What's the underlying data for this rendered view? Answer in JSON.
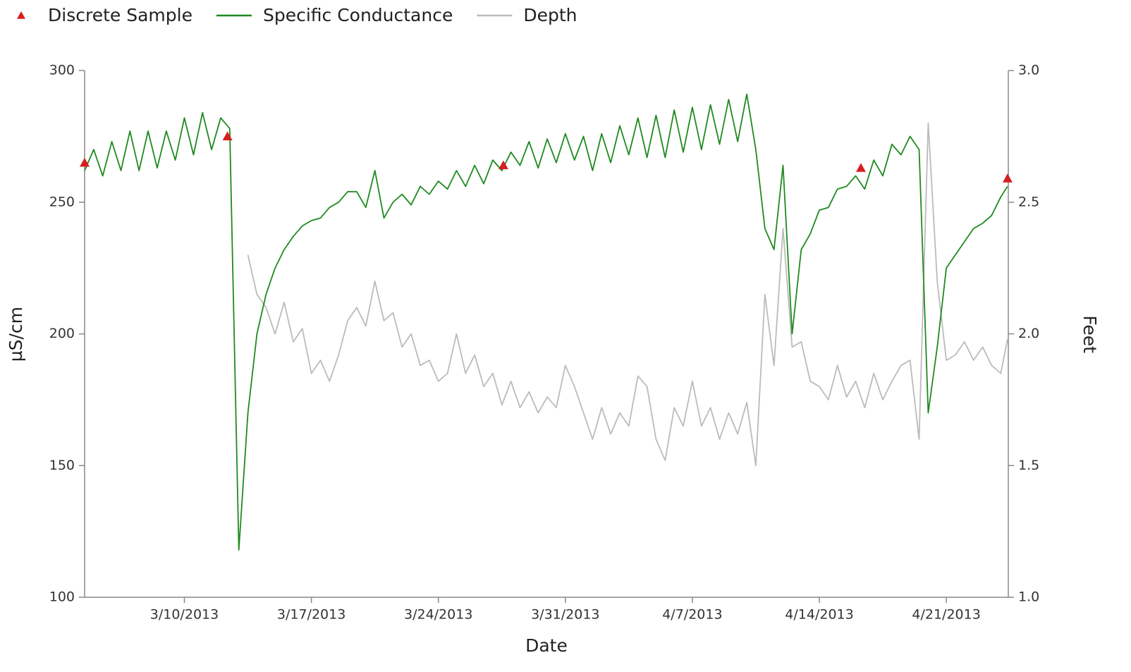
{
  "chart_data": {
    "type": "line",
    "xlabel": "Date",
    "ylabel": "µS/cm",
    "y2label": "Feet",
    "xlim": [
      "2013-03-04T12:00",
      "2013-04-24T10:00"
    ],
    "xticks": [
      {
        "value": "2013-03-10T00:00",
        "label": "3/10/2013"
      },
      {
        "value": "2013-03-17T00:00",
        "label": "3/17/2013"
      },
      {
        "value": "2013-03-24T00:00",
        "label": "3/24/2013"
      },
      {
        "value": "2013-03-31T00:00",
        "label": "3/31/2013"
      },
      {
        "value": "2013-04-07T00:00",
        "label": "4/7/2013"
      },
      {
        "value": "2013-04-14T00:00",
        "label": "4/14/2013"
      },
      {
        "value": "2013-04-21T00:00",
        "label": "4/21/2013"
      }
    ],
    "ylim": [
      100,
      300
    ],
    "yticks": [
      100,
      150,
      200,
      250,
      300
    ],
    "y2lim": [
      1,
      3
    ],
    "y2ticks": [
      {
        "value": 1,
        "label": "1.0"
      },
      1.5,
      {
        "value": 2,
        "label": "2.0"
      },
      2.5,
      {
        "value": 3,
        "label": "3.0"
      }
    ],
    "legend": "top-left",
    "x": [
      "2013-03-04T12:00",
      "2013-03-05T00:00",
      "2013-03-05T12:00",
      "2013-03-06T00:00",
      "2013-03-06T12:00",
      "2013-03-07T00:00",
      "2013-03-07T12:00",
      "2013-03-08T00:00",
      "2013-03-08T12:00",
      "2013-03-09T00:00",
      "2013-03-09T12:00",
      "2013-03-10T00:00",
      "2013-03-10T12:00",
      "2013-03-11T00:00",
      "2013-03-11T12:00",
      "2013-03-12T00:00",
      "2013-03-12T12:00",
      "2013-03-13T00:00",
      "2013-03-13T12:00",
      "2013-03-14T00:00",
      "2013-03-14T12:00",
      "2013-03-15T00:00",
      "2013-03-15T12:00",
      "2013-03-16T00:00",
      "2013-03-16T12:00",
      "2013-03-17T00:00",
      "2013-03-17T12:00",
      "2013-03-18T00:00",
      "2013-03-18T12:00",
      "2013-03-19T00:00",
      "2013-03-19T12:00",
      "2013-03-20T00:00",
      "2013-03-20T12:00",
      "2013-03-21T00:00",
      "2013-03-21T12:00",
      "2013-03-22T00:00",
      "2013-03-22T12:00",
      "2013-03-23T00:00",
      "2013-03-23T12:00",
      "2013-03-24T00:00",
      "2013-03-24T12:00",
      "2013-03-25T00:00",
      "2013-03-25T12:00",
      "2013-03-26T00:00",
      "2013-03-26T12:00",
      "2013-03-27T00:00",
      "2013-03-27T12:00",
      "2013-03-28T00:00",
      "2013-03-28T12:00",
      "2013-03-29T00:00",
      "2013-03-29T12:00",
      "2013-03-30T00:00",
      "2013-03-30T12:00",
      "2013-03-31T00:00",
      "2013-03-31T12:00",
      "2013-04-01T00:00",
      "2013-04-01T12:00",
      "2013-04-02T00:00",
      "2013-04-02T12:00",
      "2013-04-03T00:00",
      "2013-04-03T12:00",
      "2013-04-04T00:00",
      "2013-04-04T12:00",
      "2013-04-05T00:00",
      "2013-04-05T12:00",
      "2013-04-06T00:00",
      "2013-04-06T12:00",
      "2013-04-07T00:00",
      "2013-04-07T12:00",
      "2013-04-08T00:00",
      "2013-04-08T12:00",
      "2013-04-09T00:00",
      "2013-04-09T12:00",
      "2013-04-10T00:00",
      "2013-04-10T12:00",
      "2013-04-11T00:00",
      "2013-04-11T12:00",
      "2013-04-12T00:00",
      "2013-04-12T12:00",
      "2013-04-13T00:00",
      "2013-04-13T12:00",
      "2013-04-14T00:00",
      "2013-04-14T12:00",
      "2013-04-15T00:00",
      "2013-04-15T12:00",
      "2013-04-16T00:00",
      "2013-04-16T12:00",
      "2013-04-17T00:00",
      "2013-04-17T12:00",
      "2013-04-18T00:00",
      "2013-04-18T12:00",
      "2013-04-19T00:00",
      "2013-04-19T12:00",
      "2013-04-20T00:00",
      "2013-04-20T12:00",
      "2013-04-21T00:00",
      "2013-04-21T12:00",
      "2013-04-22T00:00",
      "2013-04-22T12:00",
      "2013-04-23T00:00",
      "2013-04-23T12:00",
      "2013-04-24T00:00",
      "2013-04-24T09:00"
    ],
    "series": [
      {
        "name": "Discrete Sample",
        "type": "scatter",
        "marker": "triangle",
        "color": "#d42020",
        "x": [
          "2013-03-04T12:00",
          "2013-03-12T09:00",
          "2013-03-27T14:00",
          "2013-04-16T07:00",
          "2013-04-24T09:00"
        ],
        "values": [
          265,
          275,
          264,
          263,
          259
        ]
      },
      {
        "name": "Specific Conductance",
        "type": "line",
        "color": "#1f8a1f",
        "values": [
          262,
          270,
          260,
          273,
          262,
          277,
          262,
          277,
          263,
          277,
          266,
          282,
          268,
          284,
          270,
          282,
          278,
          118,
          170,
          200,
          215,
          225,
          232,
          237,
          241,
          243,
          244,
          248,
          250,
          254,
          254,
          248,
          262,
          244,
          250,
          253,
          249,
          256,
          253,
          258,
          255,
          262,
          256,
          264,
          257,
          266,
          262,
          269,
          264,
          273,
          263,
          274,
          265,
          276,
          266,
          275,
          262,
          276,
          265,
          279,
          268,
          282,
          267,
          283,
          267,
          285,
          269,
          286,
          270,
          287,
          272,
          289,
          273,
          291,
          270,
          240,
          232,
          264,
          200,
          232,
          238,
          247,
          248,
          255,
          256,
          260,
          255,
          266,
          260,
          272,
          268,
          275,
          270,
          170,
          195,
          225,
          230,
          235,
          240,
          242,
          245,
          252,
          256
        ]
      },
      {
        "name": "Depth",
        "type": "line",
        "axis": "y2",
        "color": "#bbbbbb",
        "values": [
          null,
          null,
          null,
          null,
          null,
          null,
          null,
          null,
          null,
          null,
          null,
          null,
          null,
          null,
          null,
          null,
          null,
          null,
          2.3,
          2.15,
          2.1,
          2.0,
          2.12,
          1.97,
          2.02,
          1.85,
          1.9,
          1.82,
          1.92,
          2.05,
          2.1,
          2.03,
          2.2,
          2.05,
          2.08,
          1.95,
          2.0,
          1.88,
          1.9,
          1.82,
          1.85,
          2.0,
          1.85,
          1.92,
          1.8,
          1.85,
          1.73,
          1.82,
          1.72,
          1.78,
          1.7,
          1.76,
          1.72,
          1.88,
          1.8,
          1.7,
          1.6,
          1.72,
          1.62,
          1.7,
          1.65,
          1.84,
          1.8,
          1.6,
          1.52,
          1.72,
          1.65,
          1.82,
          1.65,
          1.72,
          1.6,
          1.7,
          1.62,
          1.74,
          1.5,
          2.15,
          1.88,
          2.4,
          1.95,
          1.97,
          1.82,
          1.8,
          1.75,
          1.88,
          1.76,
          1.82,
          1.72,
          1.85,
          1.75,
          1.82,
          1.88,
          1.9,
          1.6,
          2.8,
          2.2,
          1.9,
          1.92,
          1.97,
          1.9,
          1.95,
          1.88,
          1.85,
          1.98
        ]
      }
    ]
  }
}
